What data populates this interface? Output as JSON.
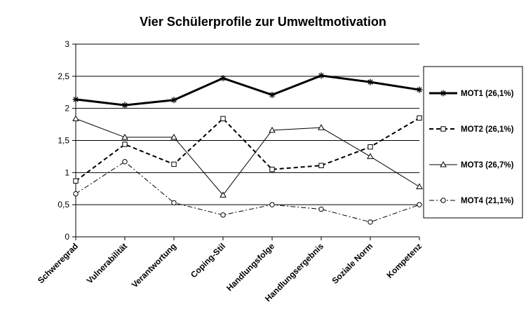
{
  "chart_data": {
    "type": "line",
    "title": "Vier Schülerprofile zur Umweltmotivation",
    "xlabel": "",
    "ylabel": "",
    "ylim": [
      0,
      3
    ],
    "yticks": [
      "0",
      "0,5",
      "1",
      "1,5",
      "2",
      "2,5",
      "3"
    ],
    "grid": "horizontal",
    "legend_position": "right",
    "categories": [
      "Schweregrad",
      "Vulnerabilität",
      "Verantwortung",
      "Coping-Stil",
      "Handlungsfolge",
      "Handlungsergebnis",
      "Soziale Norm",
      "Kompetenz"
    ],
    "series": [
      {
        "name": "MOT1 (26,1%)",
        "marker": "asterisk",
        "line": "thick-solid",
        "values": [
          2.14,
          2.05,
          2.13,
          2.47,
          2.21,
          2.51,
          2.41,
          2.29
        ]
      },
      {
        "name": "MOT2 (26,1%)",
        "marker": "square",
        "line": "thick-dashed",
        "values": [
          0.87,
          1.44,
          1.13,
          1.84,
          1.05,
          1.11,
          1.4,
          1.85
        ]
      },
      {
        "name": "MOT3 (26,7%)",
        "marker": "triangle",
        "line": "thin-solid",
        "values": [
          1.84,
          1.55,
          1.55,
          0.65,
          1.66,
          1.7,
          1.25,
          0.78
        ]
      },
      {
        "name": "MOT4 (21,1%)",
        "marker": "circle",
        "line": "dash-dot",
        "values": [
          0.67,
          1.17,
          0.53,
          0.34,
          0.5,
          0.43,
          0.23,
          0.5
        ]
      }
    ]
  }
}
